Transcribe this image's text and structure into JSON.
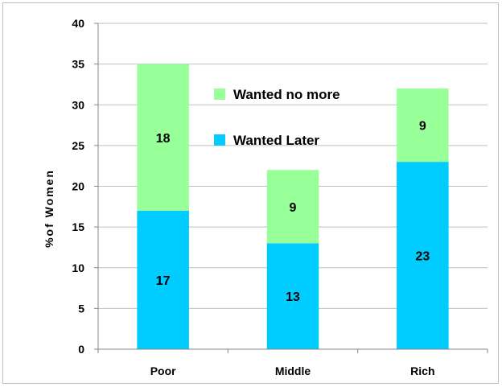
{
  "chart_data": {
    "type": "bar",
    "stacked": true,
    "categories": [
      "Poor",
      "Middle",
      "Rich"
    ],
    "series": [
      {
        "name": "Wanted Later",
        "values": [
          17,
          13,
          23
        ],
        "color": "#00ccff"
      },
      {
        "name": "Wanted no more",
        "values": [
          18,
          9,
          9
        ],
        "color": "#99ff99"
      }
    ],
    "legend_order": [
      1,
      0
    ],
    "legend_position": "top-center-right",
    "title": "",
    "xlabel": "",
    "ylabel": "%of Women",
    "ylim": [
      0,
      40
    ],
    "yticks": [
      0,
      5,
      10,
      15,
      20,
      25,
      30,
      35,
      40
    ],
    "grid": true
  }
}
